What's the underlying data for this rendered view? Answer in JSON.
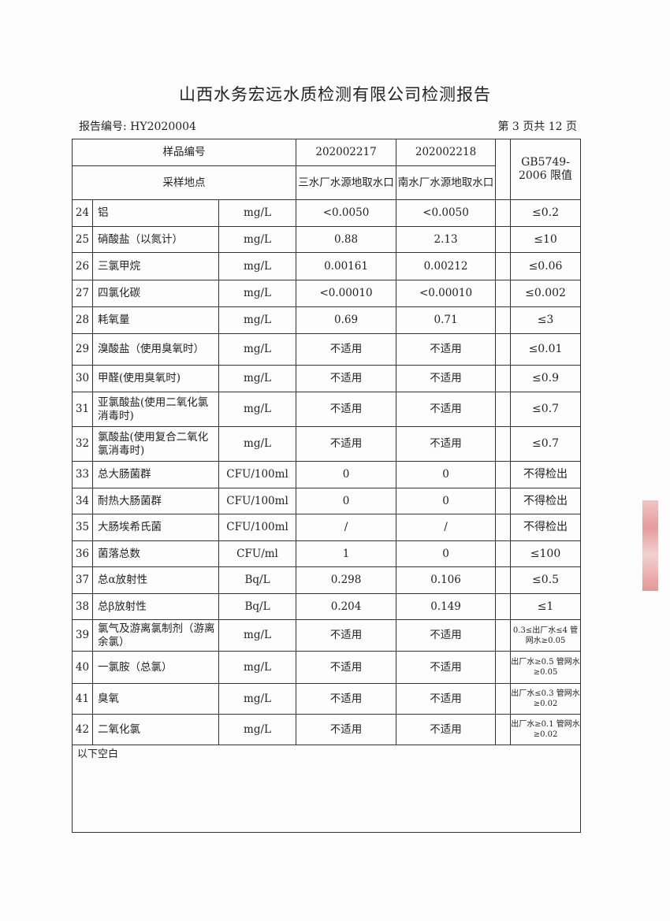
{
  "title": "山西水务宏远水质检测有限公司检测报告",
  "report_no": "报告编号: HY2020004",
  "page_no": "第 3 页共 12 页",
  "header": {
    "sample_no_label": "样品编号",
    "sample1": "202002217",
    "sample2": "202002218",
    "site_label": "采样地点",
    "site1": "三水厂水源地取水口",
    "site2": "南水厂水源地取水口",
    "limit_label": "GB5749-2006 限值"
  },
  "rows": [
    {
      "no": "24",
      "item": "铝",
      "unit": "mg/L",
      "v1": "<0.0050",
      "v2": "<0.0050",
      "limit": "≤0.2"
    },
    {
      "no": "25",
      "item": "硝酸盐（以氮计）",
      "unit": "mg/L",
      "v1": "0.88",
      "v2": "2.13",
      "limit": "≤10"
    },
    {
      "no": "26",
      "item": "三氯甲烷",
      "unit": "mg/L",
      "v1": "0.00161",
      "v2": "0.00212",
      "limit": "≤0.06"
    },
    {
      "no": "27",
      "item": "四氯化碳",
      "unit": "mg/L",
      "v1": "<0.00010",
      "v2": "<0.00010",
      "limit": "≤0.002"
    },
    {
      "no": "28",
      "item": "耗氧量",
      "unit": "mg/L",
      "v1": "0.69",
      "v2": "0.71",
      "limit": "≤3"
    },
    {
      "no": "29",
      "item": "溴酸盐（使用臭氧时）",
      "unit": "mg/L",
      "v1": "不适用",
      "v2": "不适用",
      "limit": "≤0.01"
    },
    {
      "no": "30",
      "item": "甲醛(使用臭氧时)",
      "unit": "mg/L",
      "v1": "不适用",
      "v2": "不适用",
      "limit": "≤0.9"
    },
    {
      "no": "31",
      "item": "亚氯酸盐(使用二氧化氯消毒时)",
      "unit": "mg/L",
      "v1": "不适用",
      "v2": "不适用",
      "limit": "≤0.7"
    },
    {
      "no": "32",
      "item": "氯酸盐(使用复合二氧化氯消毒时)",
      "unit": "mg/L",
      "v1": "不适用",
      "v2": "不适用",
      "limit": "≤0.7"
    },
    {
      "no": "33",
      "item": "总大肠菌群",
      "unit": "CFU/100ml",
      "v1": "0",
      "v2": "0",
      "limit": "不得检出"
    },
    {
      "no": "34",
      "item": "耐热大肠菌群",
      "unit": "CFU/100ml",
      "v1": "0",
      "v2": "0",
      "limit": "不得检出"
    },
    {
      "no": "35",
      "item": "大肠埃希氏菌",
      "unit": "CFU/100ml",
      "v1": "/",
      "v2": "/",
      "limit": "不得检出"
    },
    {
      "no": "36",
      "item": "菌落总数",
      "unit": "CFU/ml",
      "v1": "1",
      "v2": "0",
      "limit": "≤100"
    },
    {
      "no": "37",
      "item": "总α放射性",
      "unit": "Bq/L",
      "v1": "0.298",
      "v2": "0.106",
      "limit": "≤0.5"
    },
    {
      "no": "38",
      "item": "总β放射性",
      "unit": "Bq/L",
      "v1": "0.204",
      "v2": "0.149",
      "limit": "≤1"
    },
    {
      "no": "39",
      "item": "氯气及游离氯制剂（游离余氯）",
      "unit": "mg/L",
      "v1": "不适用",
      "v2": "不适用",
      "limit": "0.3≤出厂水≤4 管网水≥0.05"
    },
    {
      "no": "40",
      "item": "一氯胺（总氯）",
      "unit": "mg/L",
      "v1": "不适用",
      "v2": "不适用",
      "limit": "出厂水≥0.5 管网水≥0.05"
    },
    {
      "no": "41",
      "item": "臭氧",
      "unit": "mg/L",
      "v1": "不适用",
      "v2": "不适用",
      "limit": "出厂水≤0.3 管网水≥0.02"
    },
    {
      "no": "42",
      "item": "二氧化氯",
      "unit": "mg/L",
      "v1": "不适用",
      "v2": "不适用",
      "limit": "出厂水≥0.1 管网水≥0.02"
    }
  ],
  "remark": "以下空白"
}
